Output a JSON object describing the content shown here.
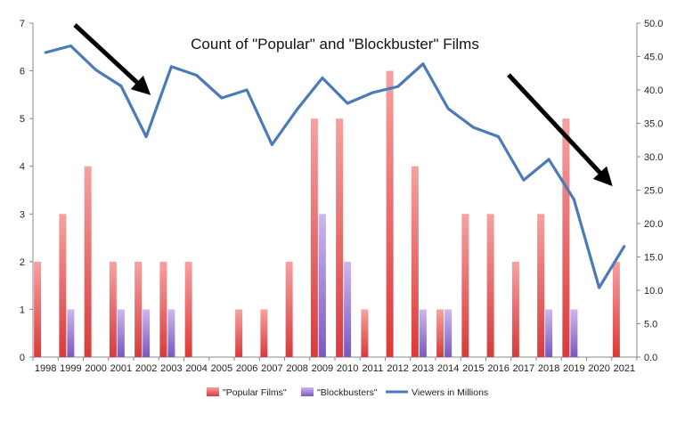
{
  "chart_data": {
    "type": "bar",
    "title": "Count of \"Popular\" and \"Blockbuster\" Films",
    "categories": [
      "1998",
      "1999",
      "2000",
      "2001",
      "2002",
      "2003",
      "2004",
      "2005",
      "2006",
      "2007",
      "2008",
      "2009",
      "2010",
      "2011",
      "2012",
      "2013",
      "2014",
      "2015",
      "2016",
      "2017",
      "2018",
      "2019",
      "2020",
      "2021"
    ],
    "ylim": [
      0,
      7
    ],
    "y_ticks": [
      "0",
      "1",
      "2",
      "3",
      "4",
      "5",
      "6",
      "7"
    ],
    "y2lim": [
      0,
      50
    ],
    "y2_ticks": [
      "0.0",
      "5.0",
      "10.0",
      "15.0",
      "20.0",
      "25.0",
      "30.0",
      "35.0",
      "40.0",
      "45.0",
      "50.0"
    ],
    "grid": false,
    "legend_position": "bottom",
    "series": [
      {
        "name": "\"Popular Films\"",
        "type": "bar",
        "color": "#f08080",
        "values": [
          2,
          3,
          4,
          2,
          2,
          2,
          2,
          0,
          1,
          1,
          2,
          5,
          5,
          1,
          6,
          4,
          1,
          3,
          3,
          2,
          3,
          5,
          0,
          2
        ]
      },
      {
        "name": "\"Blockbusters\"",
        "type": "bar",
        "color": "#b39ddb",
        "values": [
          0,
          1,
          0,
          1,
          1,
          1,
          0,
          0,
          0,
          0,
          0,
          3,
          2,
          0,
          0,
          1,
          1,
          0,
          0,
          0,
          1,
          1,
          0,
          0
        ]
      },
      {
        "name": "Viewers in Millions",
        "type": "line",
        "axis": "right",
        "color": "#4a7ab8",
        "values": [
          45.6,
          46.6,
          43.0,
          40.6,
          33.0,
          43.5,
          42.2,
          38.8,
          40.0,
          31.8,
          37.1,
          41.8,
          38.0,
          39.6,
          40.5,
          43.9,
          37.2,
          34.4,
          33.0,
          26.5,
          29.6,
          23.6,
          10.4,
          16.6
        ]
      }
    ]
  },
  "arrow_color": "#000000"
}
